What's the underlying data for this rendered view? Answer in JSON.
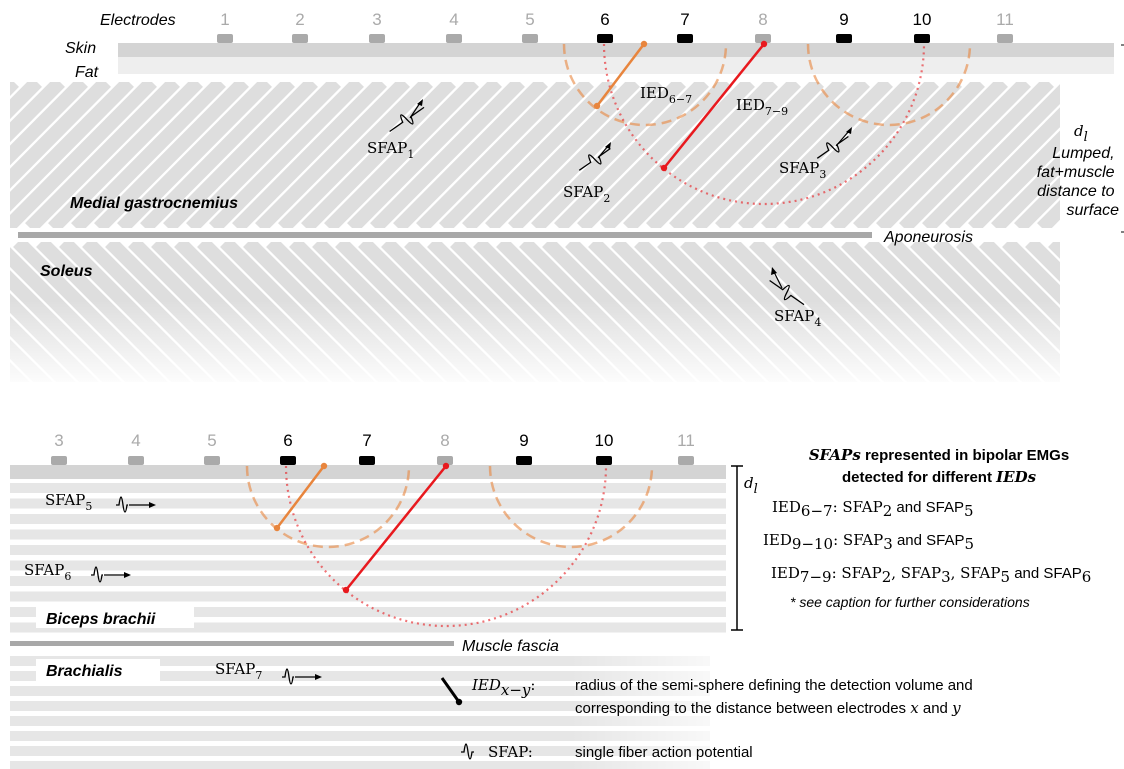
{
  "top": {
    "electrodes_label": "Electrodes",
    "skin_label": "Skin",
    "fat_label": "Fat",
    "electrodes": [
      {
        "n": "1",
        "active": false
      },
      {
        "n": "2",
        "active": false
      },
      {
        "n": "3",
        "active": false
      },
      {
        "n": "4",
        "active": false
      },
      {
        "n": "5",
        "active": false
      },
      {
        "n": "6",
        "active": true
      },
      {
        "n": "7",
        "active": true
      },
      {
        "n": "8",
        "active": false
      },
      {
        "n": "9",
        "active": true
      },
      {
        "n": "10",
        "active": true
      },
      {
        "n": "11",
        "active": false
      }
    ],
    "ied67": {
      "main": "IED",
      "sub": "6−7"
    },
    "ied79": {
      "main": "IED",
      "sub": "7−9"
    },
    "sfap1": {
      "main": "SFAP",
      "sub": "1"
    },
    "sfap2": {
      "main": "SFAP",
      "sub": "2"
    },
    "sfap3": {
      "main": "SFAP",
      "sub": "3"
    },
    "sfap4": {
      "main": "SFAP",
      "sub": "4"
    },
    "muscle1": "Medial gastrocnemius",
    "muscle2": "Soleus",
    "aponeurosis": "Aponeurosis",
    "dl_main": "d",
    "dl_sub": "l",
    "dl_desc": [
      "Lumped,",
      "fat+muscle",
      "distance to",
      "surface"
    ]
  },
  "bottom": {
    "electrodes": [
      {
        "n": "3",
        "active": false
      },
      {
        "n": "4",
        "active": false
      },
      {
        "n": "5",
        "active": false
      },
      {
        "n": "6",
        "active": true
      },
      {
        "n": "7",
        "active": true
      },
      {
        "n": "8",
        "active": false
      },
      {
        "n": "9",
        "active": true
      },
      {
        "n": "10",
        "active": true
      },
      {
        "n": "11",
        "active": false
      }
    ],
    "sfap5": {
      "main": "SFAP",
      "sub": "5"
    },
    "sfap6": {
      "main": "SFAP",
      "sub": "6"
    },
    "sfap7": {
      "main": "SFAP",
      "sub": "7"
    },
    "muscle1": "Biceps brachii",
    "muscle2": "Brachialis",
    "fascia": "Muscle fascia",
    "dl_main": "d",
    "dl_sub": "l"
  },
  "legend": {
    "title_line1_a": "SFAPs",
    "title_line1_b": " represented in bipolar EMGs",
    "title_line2_a": "detected for different ",
    "title_line2_b": "IEDs",
    "rows": [
      {
        "ied": "IED",
        "ied_sub": "6−7",
        "text": ": SFAP",
        "s1": "2",
        "and": " and SFAP",
        "s2": "5"
      },
      {
        "ied": "IED",
        "ied_sub": "9−10",
        "text": ": SFAP",
        "s1": "3",
        "and": " and SFAP",
        "s2": "5"
      },
      {
        "ied": "IED",
        "ied_sub": "7−9",
        "text": ": SFAP",
        "s1": "2",
        "c1": ", SFAP",
        "s2": "3",
        "c2": ", SFAP",
        "s3": "5",
        "and": " and SFAP",
        "s4": "6"
      }
    ],
    "note": "* see caption for further considerations",
    "key_ied_main": "IED",
    "key_ied_sub": "x−y",
    "key_ied_colon": ":",
    "key_ied_desc1": "radius of the semi-sphere defining the detection volume and",
    "key_ied_desc2_a": "corresponding to the distance between electrodes ",
    "key_ied_x": "x",
    "key_ied_and": " and ",
    "key_ied_y": "y",
    "key_sfap": "SFAP:",
    "key_sfap_desc": "single fiber action potential"
  },
  "colors": {
    "active": "#000000",
    "inactive": "#aaaaaa",
    "orange": "#e8853d",
    "red": "#e8191e"
  }
}
